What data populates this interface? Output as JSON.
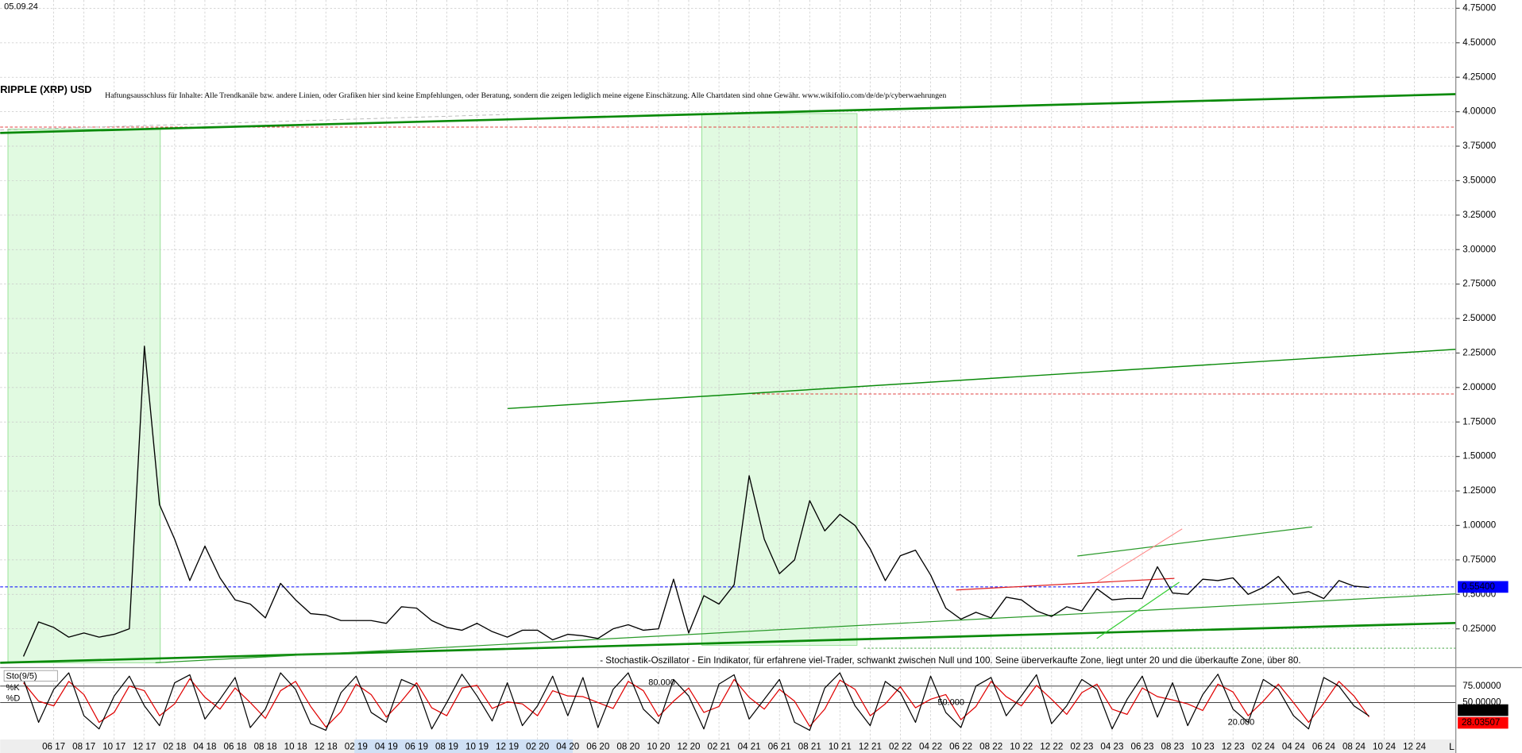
{
  "chart_data": [
    {
      "type": "line",
      "title": "RIPPLE (XRP) USD",
      "date_label": "05.09.24",
      "subtitle": "Haftungsausschluss für Inhalte: Alle Trendkanäle bzw. andere Linien, oder Grafiken hier sind keine Empfehlungen, oder Beratung, sondern die zeigen lediglich meine eigene Einschätzung. Alle Chartdaten sind ohne Gewähr. www.wikifolio.com/de/de/p/cyberwaehrungen",
      "note": "- Stochastik-Oszillator - Ein Indikator, für erfahrene viel-Trader, schwankt zwischen Null und 100. Seine überverkaufte Zone, liegt unter 20 und die überkaufte Zone, über 80.",
      "corner_label": "L",
      "categories": [
        null,
        null,
        "06 17",
        null,
        "08 17",
        null,
        "10 17",
        null,
        "12 17",
        null,
        "02 18",
        null,
        "04 18",
        null,
        "06 18",
        null,
        "08 18",
        null,
        "10 18",
        null,
        "12 18",
        null,
        "02 19",
        null,
        "04 19",
        null,
        "06 19",
        null,
        "08 19",
        null,
        "10 19",
        null,
        "12 19",
        null,
        "02 20",
        null,
        "04 20",
        null,
        "06 20",
        null,
        "08 20",
        null,
        "10 20",
        null,
        "12 20",
        null,
        "02 21",
        null,
        "04 21",
        null,
        "06 21",
        null,
        "08 21",
        null,
        "10 21",
        null,
        "12 21",
        null,
        "02 22",
        null,
        "04 22",
        null,
        "06 22",
        null,
        "08 22",
        null,
        "10 22",
        null,
        "12 22",
        null,
        "02 23",
        null,
        "04 23",
        null,
        "06 23",
        null,
        "08 23",
        null,
        "10 23",
        null,
        "12 23",
        null,
        "02 24",
        null,
        "04 24",
        null,
        "06 24",
        null,
        "08 24",
        null,
        "10 24",
        null,
        "12 24"
      ],
      "series": [
        {
          "color": "#000000",
          "values": [
            0.05,
            0.3,
            0.26,
            0.19,
            0.22,
            0.19,
            0.21,
            0.25,
            2.3,
            1.15,
            0.9,
            0.6,
            0.85,
            0.62,
            0.46,
            0.43,
            0.33,
            0.58,
            0.46,
            0.36,
            0.35,
            0.31,
            0.31,
            0.31,
            0.29,
            0.41,
            0.4,
            0.31,
            0.26,
            0.24,
            0.29,
            0.23,
            0.19,
            0.24,
            0.24,
            0.17,
            0.21,
            0.2,
            0.18,
            0.25,
            0.28,
            0.24,
            0.25,
            0.61,
            0.22,
            0.49,
            0.43,
            0.57,
            1.36,
            0.9,
            0.65,
            0.75,
            1.18,
            0.96,
            1.08,
            1.0,
            0.83,
            0.6,
            0.78,
            0.82,
            0.64,
            0.4,
            0.32,
            0.37,
            0.33,
            0.48,
            0.46,
            0.38,
            0.34,
            0.41,
            0.38,
            0.54,
            0.46,
            0.47,
            0.47,
            0.7,
            0.51,
            0.5,
            0.61,
            0.6,
            0.62,
            0.5,
            0.55,
            0.63,
            0.5,
            0.52,
            0.47,
            0.6,
            0.56,
            0.55,
            null,
            null,
            null
          ]
        }
      ],
      "ylim": [
        -0.01,
        4.81
      ],
      "yticks": [
        {
          "value": 0.25,
          "label": "0.25000"
        },
        {
          "value": 0.5,
          "label": "0.50000"
        },
        {
          "value": 0.75,
          "label": "0.75000"
        },
        {
          "value": 1,
          "label": "1.00000"
        },
        {
          "value": 1.25,
          "label": "1.25000"
        },
        {
          "value": 1.5,
          "label": "1.50000"
        },
        {
          "value": 1.75,
          "label": "1.75000"
        },
        {
          "value": 2,
          "label": "2.00000"
        },
        {
          "value": 2.25,
          "label": "2.25000"
        },
        {
          "value": 2.5,
          "label": "2.50000"
        },
        {
          "value": 2.75,
          "label": "2.75000"
        },
        {
          "value": 3,
          "label": "3.00000"
        },
        {
          "value": 3.25,
          "label": "3.25000"
        },
        {
          "value": 3.5,
          "label": "3.50000"
        },
        {
          "value": 3.75,
          "label": "3.75000"
        },
        {
          "value": 4,
          "label": "4.00000"
        },
        {
          "value": 4.25,
          "label": "4.25000"
        },
        {
          "value": 4.5,
          "label": "4.50000"
        },
        {
          "value": 4.75,
          "label": "4.75000"
        }
      ],
      "grid": true,
      "annotations": [
        {
          "text": "0.55400",
          "value": 0.554,
          "color": "#0000ff"
        }
      ]
    },
    {
      "type": "line",
      "title": "Sto(9/5)",
      "series": [
        {
          "name": "%K",
          "color": "#000000",
          "values": [
            85,
            20,
            70,
            95,
            30,
            10,
            60,
            90,
            45,
            15,
            80,
            92,
            25,
            55,
            88,
            12,
            40,
            95,
            70,
            18,
            8,
            65,
            90,
            35,
            20,
            85,
            75,
            10,
            50,
            93,
            60,
            22,
            80,
            15,
            45,
            90,
            30,
            88,
            12,
            70,
            95,
            40,
            18,
            85,
            60,
            10,
            78,
            92,
            25,
            55,
            85,
            20,
            8,
            72,
            95,
            45,
            15,
            82,
            65,
            20,
            90,
            35,
            12,
            75,
            88,
            30,
            60,
            92,
            18,
            45,
            85,
            70,
            10,
            55,
            90,
            28,
            80,
            15,
            62,
            93,
            40,
            20,
            85,
            70,
            30,
            10,
            88,
            75,
            45,
            29.65927,
            null,
            null,
            null
          ]
        },
        {
          "name": "%D",
          "color": "#e00000",
          "values": [
            80,
            52,
            45,
            82,
            62,
            20,
            35,
            75,
            68,
            30,
            48,
            86,
            58,
            40,
            72,
            50,
            26,
            68,
            82,
            44,
            13,
            36,
            78,
            62,
            28,
            52,
            80,
            42,
            30,
            72,
            76,
            41,
            51,
            48,
            30,
            68,
            60,
            59,
            50,
            41,
            82,
            68,
            29,
            52,
            72,
            35,
            44,
            85,
            58,
            40,
            70,
            52,
            14,
            40,
            84,
            70,
            30,
            48,
            74,
            42,
            55,
            62,
            24,
            44,
            82,
            59,
            45,
            76,
            55,
            32,
            65,
            78,
            40,
            32,
            72,
            59,
            54,
            48,
            38,
            78,
            66,
            30,
            52,
            78,
            50,
            20,
            49,
            82,
            60,
            28.03507,
            null,
            null,
            null
          ]
        }
      ],
      "ylim": [
        0,
        100
      ],
      "yticks": [
        {
          "value": 75,
          "label": "75.00000"
        },
        {
          "value": 50,
          "label": "50.00000"
        }
      ],
      "levels": [
        {
          "text": "80.000",
          "value": 80
        },
        {
          "text": "50.000",
          "value": 50
        },
        {
          "text": "20.000",
          "value": 20
        }
      ],
      "annotations": [
        {
          "text": "29.65927",
          "value": 29.65927,
          "color": "#000000"
        },
        {
          "text": "28.03507",
          "value": 28.03507,
          "color": "#ff0000"
        }
      ]
    }
  ]
}
